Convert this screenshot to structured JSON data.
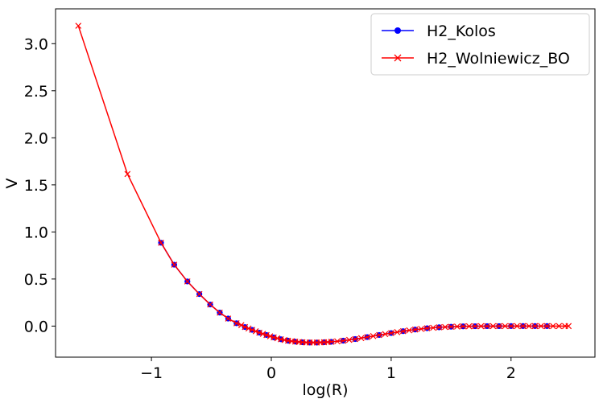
{
  "chart_data": {
    "type": "line",
    "xlabel": "log(R)",
    "ylabel": "V",
    "xlim": [
      -1.8,
      2.7
    ],
    "ylim": [
      -0.33,
      3.37
    ],
    "xticks": [
      -1,
      0,
      1,
      2
    ],
    "xtick_labels": [
      "−1",
      "0",
      "1",
      "2"
    ],
    "yticks": [
      0.0,
      0.5,
      1.0,
      1.5,
      2.0,
      2.5,
      3.0
    ],
    "ytick_labels": [
      "0.0",
      "0.5",
      "1.0",
      "1.5",
      "2.0",
      "2.5",
      "3.0"
    ],
    "grid": false,
    "legend_position": "top-right",
    "series": [
      {
        "name": "H2_Kolos",
        "color": "#0000ff",
        "marker": "circle",
        "points": [
          [
            -0.92,
            0.885
          ],
          [
            -0.81,
            0.652
          ],
          [
            -0.7,
            0.474
          ],
          [
            -0.6,
            0.34
          ],
          [
            -0.51,
            0.229
          ],
          [
            -0.43,
            0.143
          ],
          [
            -0.36,
            0.08
          ],
          [
            -0.29,
            0.03
          ],
          [
            -0.22,
            -0.01
          ],
          [
            -0.16,
            -0.04
          ],
          [
            -0.1,
            -0.07
          ],
          [
            -0.04,
            -0.095
          ],
          [
            0.02,
            -0.12
          ],
          [
            0.08,
            -0.14
          ],
          [
            0.14,
            -0.155
          ],
          [
            0.2,
            -0.165
          ],
          [
            0.26,
            -0.172
          ],
          [
            0.32,
            -0.175
          ],
          [
            0.38,
            -0.175
          ],
          [
            0.44,
            -0.172
          ],
          [
            0.5,
            -0.167
          ],
          [
            0.6,
            -0.155
          ],
          [
            0.7,
            -0.138
          ],
          [
            0.8,
            -0.117
          ],
          [
            0.9,
            -0.095
          ],
          [
            1.0,
            -0.074
          ],
          [
            1.1,
            -0.054
          ],
          [
            1.2,
            -0.037
          ],
          [
            1.3,
            -0.023
          ],
          [
            1.4,
            -0.013
          ],
          [
            1.5,
            -0.007
          ],
          [
            1.6,
            -0.003
          ],
          [
            1.7,
            -0.0015
          ],
          [
            1.8,
            -0.0007
          ],
          [
            1.9,
            -0.0003
          ],
          [
            2.0,
            -0.0001
          ],
          [
            2.1,
            0.0
          ],
          [
            2.2,
            0.0
          ],
          [
            2.3,
            0.0
          ]
        ]
      },
      {
        "name": "H2_Wolniewicz_BO",
        "color": "#ff0000",
        "marker": "x",
        "points": [
          [
            -1.61,
            3.19
          ],
          [
            -1.2,
            1.615
          ],
          [
            -0.92,
            0.885
          ],
          [
            -0.81,
            0.652
          ],
          [
            -0.7,
            0.474
          ],
          [
            -0.6,
            0.34
          ],
          [
            -0.51,
            0.229
          ],
          [
            -0.43,
            0.143
          ],
          [
            -0.36,
            0.08
          ],
          [
            -0.29,
            0.03
          ],
          [
            -0.25,
            0.01
          ],
          [
            -0.22,
            -0.01
          ],
          [
            -0.19,
            -0.025
          ],
          [
            -0.16,
            -0.04
          ],
          [
            -0.13,
            -0.055
          ],
          [
            -0.1,
            -0.07
          ],
          [
            -0.07,
            -0.083
          ],
          [
            -0.04,
            -0.095
          ],
          [
            -0.01,
            -0.108
          ],
          [
            0.02,
            -0.12
          ],
          [
            0.05,
            -0.13
          ],
          [
            0.08,
            -0.14
          ],
          [
            0.11,
            -0.148
          ],
          [
            0.14,
            -0.155
          ],
          [
            0.17,
            -0.16
          ],
          [
            0.2,
            -0.165
          ],
          [
            0.23,
            -0.169
          ],
          [
            0.26,
            -0.172
          ],
          [
            0.29,
            -0.174
          ],
          [
            0.32,
            -0.175
          ],
          [
            0.35,
            -0.175
          ],
          [
            0.38,
            -0.175
          ],
          [
            0.41,
            -0.174
          ],
          [
            0.44,
            -0.172
          ],
          [
            0.47,
            -0.17
          ],
          [
            0.5,
            -0.167
          ],
          [
            0.55,
            -0.162
          ],
          [
            0.6,
            -0.155
          ],
          [
            0.65,
            -0.147
          ],
          [
            0.7,
            -0.138
          ],
          [
            0.75,
            -0.128
          ],
          [
            0.8,
            -0.117
          ],
          [
            0.85,
            -0.106
          ],
          [
            0.9,
            -0.095
          ],
          [
            0.95,
            -0.085
          ],
          [
            1.0,
            -0.074
          ],
          [
            1.05,
            -0.064
          ],
          [
            1.1,
            -0.054
          ],
          [
            1.15,
            -0.045
          ],
          [
            1.2,
            -0.037
          ],
          [
            1.25,
            -0.03
          ],
          [
            1.3,
            -0.023
          ],
          [
            1.35,
            -0.018
          ],
          [
            1.4,
            -0.013
          ],
          [
            1.45,
            -0.01
          ],
          [
            1.5,
            -0.007
          ],
          [
            1.55,
            -0.005
          ],
          [
            1.6,
            -0.003
          ],
          [
            1.65,
            -0.002
          ],
          [
            1.7,
            -0.0015
          ],
          [
            1.75,
            -0.001
          ],
          [
            1.8,
            -0.0007
          ],
          [
            1.85,
            -0.0005
          ],
          [
            1.9,
            -0.0003
          ],
          [
            1.95,
            -0.0002
          ],
          [
            2.0,
            -0.0001
          ],
          [
            2.05,
            0.0
          ],
          [
            2.1,
            0.0
          ],
          [
            2.15,
            0.0
          ],
          [
            2.2,
            0.0
          ],
          [
            2.25,
            0.0
          ],
          [
            2.3,
            0.0
          ],
          [
            2.35,
            0.0
          ],
          [
            2.4,
            0.0
          ],
          [
            2.45,
            0.0
          ],
          [
            2.48,
            0.0
          ]
        ]
      }
    ]
  }
}
